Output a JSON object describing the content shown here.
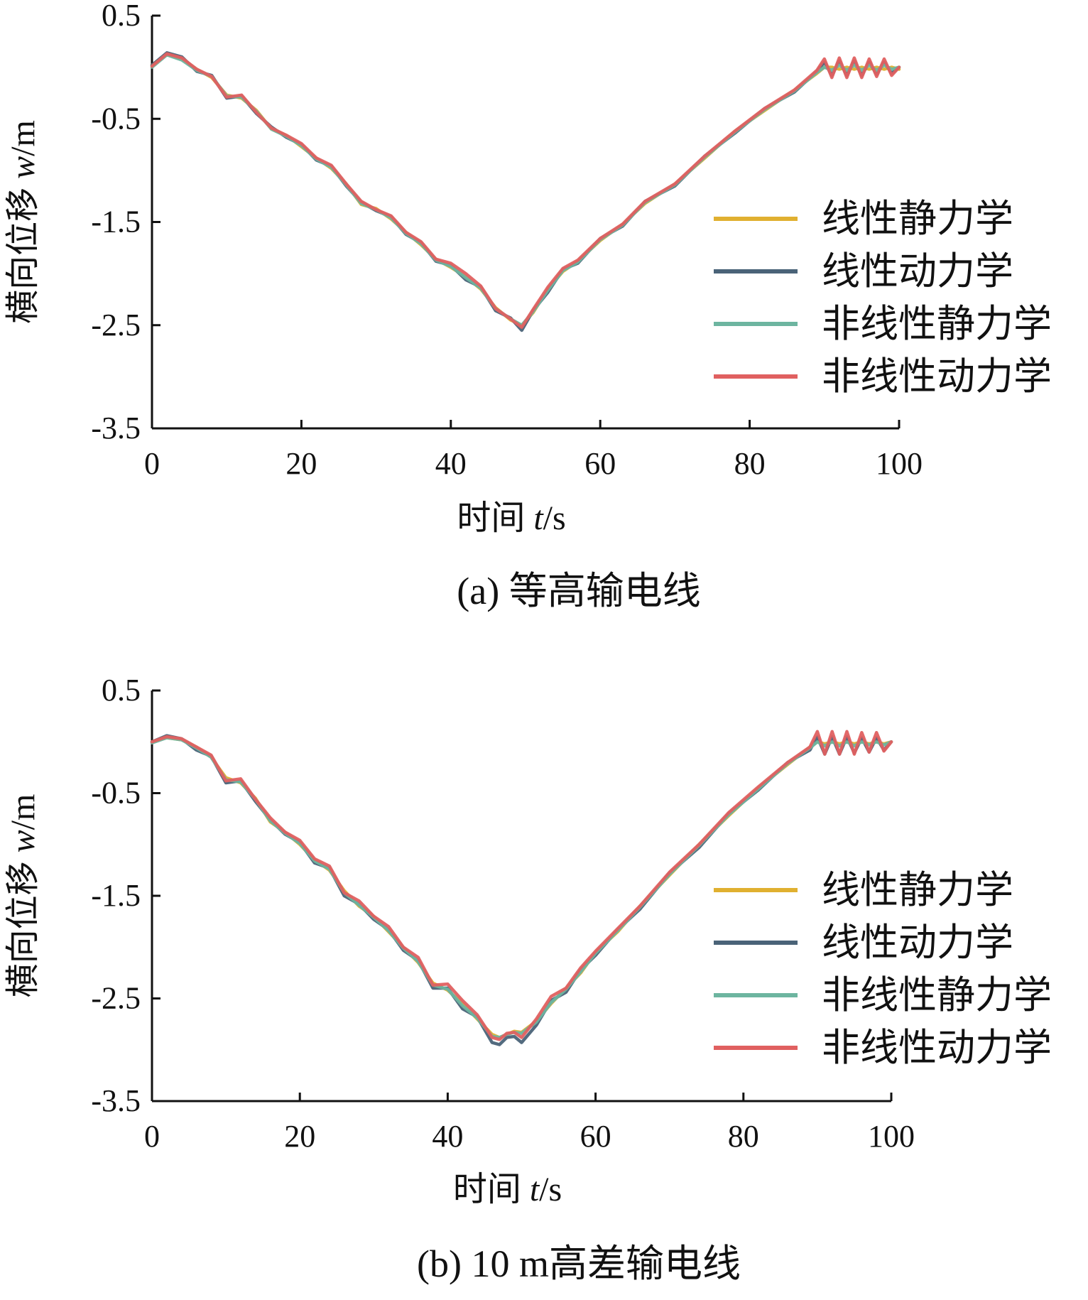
{
  "chart_data": [
    {
      "type": "line",
      "caption": "(a) 等高输电线",
      "xlabel_prefix": "时间 ",
      "xlabel_var": "t",
      "xlabel_unit": "/s",
      "ylabel_prefix": "横向位移 ",
      "ylabel_var": "w",
      "ylabel_unit": "/m",
      "xlim": [
        0,
        100
      ],
      "ylim": [
        -3.5,
        0.5
      ],
      "xticks": [
        0,
        20,
        40,
        60,
        80,
        100
      ],
      "yticks": [
        0.5,
        -0.5,
        -1.5,
        -2.5,
        -3.5
      ],
      "grid": false,
      "legend_position": "right",
      "series": [
        {
          "name": "线性静力学",
          "color": "#E0B030",
          "x": [
            0,
            2,
            4,
            6,
            8,
            10,
            12,
            14,
            16,
            18,
            20,
            22,
            24,
            26,
            28,
            30,
            32,
            34,
            36,
            38,
            40,
            42,
            44,
            46,
            48,
            49.5,
            51,
            53,
            55,
            57,
            60,
            63,
            66,
            70,
            74,
            78,
            82,
            86,
            89,
            90,
            91,
            92,
            93,
            94,
            95,
            96,
            97,
            98,
            99,
            100
          ],
          "y": [
            0.02,
            0.12,
            0.08,
            -0.02,
            -0.1,
            -0.27,
            -0.3,
            -0.42,
            -0.6,
            -0.66,
            -0.77,
            -0.88,
            -0.98,
            -1.13,
            -1.33,
            -1.37,
            -1.47,
            -1.6,
            -1.72,
            -1.86,
            -1.94,
            -2.03,
            -2.15,
            -2.33,
            -2.45,
            -2.5,
            -2.38,
            -2.15,
            -1.98,
            -1.88,
            -1.68,
            -1.52,
            -1.32,
            -1.13,
            -0.88,
            -0.62,
            -0.42,
            -0.22,
            -0.06,
            0.0,
            0.0,
            -0.02,
            0.0,
            -0.02,
            0.0,
            -0.02,
            0.0,
            -0.02,
            0.0,
            -0.02
          ]
        },
        {
          "name": "线性动力学",
          "color": "#4A6378",
          "x": [
            0,
            2,
            4,
            6,
            8,
            10,
            12,
            14,
            16,
            18,
            20,
            22,
            24,
            26,
            28,
            30,
            32,
            34,
            36,
            38,
            40,
            42,
            44,
            46,
            48,
            49.5,
            51,
            53,
            55,
            57,
            60,
            63,
            66,
            70,
            74,
            78,
            82,
            86,
            89,
            90,
            91,
            92,
            93,
            94,
            95,
            96,
            97,
            98,
            99,
            100
          ],
          "y": [
            0.02,
            0.14,
            0.1,
            -0.04,
            -0.08,
            -0.3,
            -0.28,
            -0.45,
            -0.58,
            -0.68,
            -0.75,
            -0.9,
            -0.96,
            -1.15,
            -1.31,
            -1.39,
            -1.45,
            -1.62,
            -1.7,
            -1.88,
            -1.92,
            -2.06,
            -2.13,
            -2.36,
            -2.43,
            -2.55,
            -2.36,
            -2.18,
            -1.96,
            -1.9,
            -1.66,
            -1.54,
            -1.3,
            -1.15,
            -0.86,
            -0.64,
            -0.4,
            -0.24,
            -0.04,
            0.05,
            -0.08,
            0.06,
            -0.08,
            0.06,
            -0.08,
            0.05,
            -0.07,
            0.05,
            -0.06,
            0.0
          ]
        },
        {
          "name": "非线性静力学",
          "color": "#6DB5A0",
          "x": [
            0,
            2,
            4,
            6,
            8,
            10,
            12,
            14,
            16,
            18,
            20,
            22,
            24,
            26,
            28,
            30,
            32,
            34,
            36,
            38,
            40,
            42,
            44,
            46,
            48,
            49.5,
            51,
            53,
            55,
            57,
            60,
            63,
            66,
            70,
            74,
            78,
            82,
            86,
            89,
            90,
            91,
            92,
            93,
            94,
            95,
            96,
            97,
            98,
            99,
            100
          ],
          "y": [
            0.0,
            0.12,
            0.07,
            -0.03,
            -0.09,
            -0.28,
            -0.29,
            -0.43,
            -0.6,
            -0.67,
            -0.76,
            -0.89,
            -0.97,
            -1.14,
            -1.32,
            -1.38,
            -1.46,
            -1.61,
            -1.71,
            -1.87,
            -1.93,
            -2.04,
            -2.14,
            -2.34,
            -2.44,
            -2.5,
            -2.37,
            -2.16,
            -1.97,
            -1.89,
            -1.67,
            -1.53,
            -1.31,
            -1.14,
            -0.87,
            -0.63,
            -0.41,
            -0.23,
            -0.05,
            0.0,
            -0.03,
            0.02,
            -0.03,
            0.02,
            -0.03,
            0.02,
            -0.03,
            0.02,
            -0.02,
            0.0
          ]
        },
        {
          "name": "非线性动力学",
          "color": "#E06060",
          "x": [
            0,
            2,
            4,
            6,
            8,
            10,
            12,
            14,
            16,
            18,
            20,
            22,
            24,
            26,
            28,
            30,
            32,
            34,
            36,
            38,
            40,
            42,
            44,
            46,
            48,
            49.5,
            51,
            53,
            55,
            57,
            60,
            63,
            66,
            70,
            74,
            78,
            82,
            86,
            89,
            90,
            91,
            92,
            93,
            94,
            95,
            96,
            97,
            98,
            99,
            100
          ],
          "y": [
            0.01,
            0.13,
            0.09,
            -0.02,
            -0.09,
            -0.29,
            -0.27,
            -0.44,
            -0.59,
            -0.66,
            -0.74,
            -0.88,
            -0.95,
            -1.13,
            -1.3,
            -1.38,
            -1.44,
            -1.6,
            -1.69,
            -1.86,
            -1.9,
            -2.0,
            -2.12,
            -2.34,
            -2.44,
            -2.52,
            -2.35,
            -2.13,
            -1.95,
            -1.87,
            -1.66,
            -1.52,
            -1.3,
            -1.13,
            -0.86,
            -0.62,
            -0.4,
            -0.22,
            -0.03,
            0.08,
            -0.1,
            0.09,
            -0.1,
            0.09,
            -0.1,
            0.08,
            -0.09,
            0.08,
            -0.08,
            0.0
          ]
        }
      ]
    },
    {
      "type": "line",
      "caption": "(b) 10 m高差输电线",
      "xlabel_prefix": "时间 ",
      "xlabel_var": "t",
      "xlabel_unit": "/s",
      "ylabel_prefix": "横向位移 ",
      "ylabel_var": "w",
      "ylabel_unit": "/m",
      "xlim": [
        0,
        100
      ],
      "ylim": [
        -3.5,
        0.5
      ],
      "xticks": [
        0,
        20,
        40,
        60,
        80,
        100
      ],
      "yticks": [
        0.5,
        -0.5,
        -1.5,
        -2.5,
        -3.5
      ],
      "grid": false,
      "legend_position": "right",
      "series": [
        {
          "name": "线性静力学",
          "color": "#E0B030",
          "x": [
            0,
            2,
            4,
            6,
            8,
            10,
            12,
            14,
            16,
            18,
            20,
            22,
            24,
            26,
            28,
            30,
            32,
            34,
            36,
            38,
            40,
            42,
            44,
            46,
            47,
            48,
            49,
            50,
            52,
            54,
            56,
            58,
            60,
            63,
            66,
            70,
            74,
            78,
            82,
            86,
            89,
            90,
            91,
            92,
            93,
            94,
            95,
            96,
            97,
            98,
            99,
            100
          ],
          "y": [
            0.0,
            0.04,
            0.02,
            -0.05,
            -0.15,
            -0.35,
            -0.4,
            -0.55,
            -0.78,
            -0.88,
            -1.0,
            -1.15,
            -1.25,
            -1.45,
            -1.6,
            -1.7,
            -1.85,
            -2.0,
            -2.15,
            -2.35,
            -2.42,
            -2.55,
            -2.7,
            -2.85,
            -2.88,
            -2.85,
            -2.82,
            -2.83,
            -2.72,
            -2.55,
            -2.4,
            -2.25,
            -2.05,
            -1.85,
            -1.6,
            -1.3,
            -1.0,
            -0.72,
            -0.45,
            -0.22,
            -0.05,
            0.0,
            -0.02,
            0.0,
            -0.02,
            0.0,
            -0.02,
            0.0,
            -0.02,
            0.0,
            -0.02,
            0.0
          ]
        },
        {
          "name": "线性动力学",
          "color": "#4A6378",
          "x": [
            0,
            2,
            4,
            6,
            8,
            10,
            12,
            14,
            16,
            18,
            20,
            22,
            24,
            26,
            28,
            30,
            32,
            34,
            36,
            38,
            40,
            42,
            44,
            46,
            47,
            48,
            49,
            50,
            52,
            54,
            56,
            58,
            60,
            63,
            66,
            70,
            74,
            78,
            82,
            86,
            89,
            90,
            91,
            92,
            93,
            94,
            95,
            96,
            97,
            98,
            99,
            100
          ],
          "y": [
            0.0,
            0.06,
            0.03,
            -0.08,
            -0.14,
            -0.4,
            -0.38,
            -0.58,
            -0.76,
            -0.9,
            -0.98,
            -1.18,
            -1.23,
            -1.5,
            -1.58,
            -1.73,
            -1.83,
            -2.03,
            -2.13,
            -2.4,
            -2.4,
            -2.6,
            -2.68,
            -2.93,
            -2.95,
            -2.88,
            -2.87,
            -2.93,
            -2.76,
            -2.52,
            -2.44,
            -2.22,
            -2.08,
            -1.83,
            -1.63,
            -1.28,
            -1.03,
            -0.7,
            -0.47,
            -0.2,
            -0.08,
            0.05,
            -0.12,
            0.05,
            -0.12,
            0.05,
            -0.11,
            0.04,
            -0.1,
            0.04,
            -0.08,
            0.0
          ]
        },
        {
          "name": "非线性静力学",
          "color": "#6DB5A0",
          "x": [
            0,
            2,
            4,
            6,
            8,
            10,
            12,
            14,
            16,
            18,
            20,
            22,
            24,
            26,
            28,
            30,
            32,
            34,
            36,
            38,
            40,
            42,
            44,
            46,
            47,
            48,
            49,
            50,
            52,
            54,
            56,
            58,
            60,
            63,
            66,
            70,
            74,
            78,
            82,
            86,
            89,
            90,
            91,
            92,
            93,
            94,
            95,
            96,
            97,
            98,
            99,
            100
          ],
          "y": [
            -0.01,
            0.04,
            0.02,
            -0.06,
            -0.15,
            -0.37,
            -0.39,
            -0.56,
            -0.77,
            -0.89,
            -0.99,
            -1.16,
            -1.24,
            -1.47,
            -1.59,
            -1.71,
            -1.84,
            -2.01,
            -2.14,
            -2.37,
            -2.41,
            -2.57,
            -2.69,
            -2.87,
            -2.88,
            -2.85,
            -2.83,
            -2.84,
            -2.73,
            -2.54,
            -2.41,
            -2.24,
            -2.06,
            -1.84,
            -1.61,
            -1.29,
            -1.01,
            -0.71,
            -0.46,
            -0.21,
            -0.06,
            0.0,
            -0.04,
            0.0,
            -0.04,
            0.0,
            -0.04,
            0.0,
            -0.03,
            0.0,
            -0.03,
            0.0
          ]
        },
        {
          "name": "非线性动力学",
          "color": "#E06060",
          "x": [
            0,
            2,
            4,
            6,
            8,
            10,
            12,
            14,
            16,
            18,
            20,
            22,
            24,
            26,
            28,
            30,
            32,
            34,
            36,
            38,
            40,
            42,
            44,
            46,
            47,
            48,
            49,
            50,
            52,
            54,
            56,
            58,
            60,
            63,
            66,
            70,
            74,
            78,
            82,
            86,
            89,
            90,
            91,
            92,
            93,
            94,
            95,
            96,
            97,
            98,
            99,
            100
          ],
          "y": [
            0.0,
            0.05,
            0.03,
            -0.05,
            -0.13,
            -0.38,
            -0.36,
            -0.56,
            -0.74,
            -0.88,
            -0.96,
            -1.14,
            -1.21,
            -1.47,
            -1.55,
            -1.7,
            -1.8,
            -2.0,
            -2.1,
            -2.37,
            -2.36,
            -2.52,
            -2.66,
            -2.88,
            -2.9,
            -2.84,
            -2.83,
            -2.88,
            -2.7,
            -2.48,
            -2.4,
            -2.2,
            -2.04,
            -1.82,
            -1.6,
            -1.27,
            -1.0,
            -0.69,
            -0.44,
            -0.2,
            -0.05,
            0.1,
            -0.12,
            0.1,
            -0.12,
            0.1,
            -0.12,
            0.09,
            -0.1,
            0.09,
            -0.09,
            0.0
          ]
        }
      ]
    }
  ]
}
